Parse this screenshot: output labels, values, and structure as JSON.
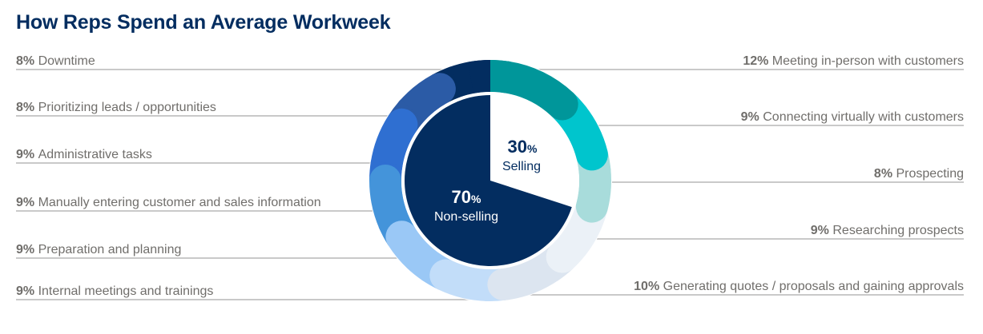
{
  "chart_data": {
    "type": "pie",
    "title": "How Reps Spend an Average Workweek",
    "inner": [
      {
        "value": 30,
        "pct_label": "30",
        "label": "Selling",
        "color": "#ffffff",
        "text_color": "#032d60"
      },
      {
        "value": 70,
        "pct_label": "70",
        "label": "Non-selling",
        "color": "#032d60",
        "text_color": "#ffffff"
      }
    ],
    "percent_sign": "%",
    "ring": [
      {
        "value": 12,
        "label": "Meeting in-person with customers",
        "side": "right",
        "color": "#00969a"
      },
      {
        "value": 9,
        "label": "Connecting virtually with customers",
        "side": "right",
        "color": "#00c5cd"
      },
      {
        "value": 8,
        "label": "Prospecting",
        "side": "right",
        "color": "#a8dcdb"
      },
      {
        "value": 9,
        "label": "Researching prospects",
        "side": "right",
        "color": "#ebf1f7"
      },
      {
        "value": 10,
        "label": "Generating quotes / proposals and gaining approvals",
        "side": "right",
        "color": "#dce5f0"
      },
      {
        "value": 9,
        "label": "Internal meetings and trainings",
        "side": "left",
        "color": "#c2ddf9"
      },
      {
        "value": 9,
        "label": "Preparation and planning",
        "side": "left",
        "color": "#9ac8f6"
      },
      {
        "value": 9,
        "label": "Manually entering customer and sales information",
        "side": "left",
        "color": "#4494da"
      },
      {
        "value": 9,
        "label": "Administrative tasks",
        "side": "left",
        "color": "#2f6fd1"
      },
      {
        "value": 8,
        "label": "Prioritizing leads / opportunities",
        "side": "left",
        "color": "#2b5ba6"
      },
      {
        "value": 8,
        "label": "Downtime",
        "side": "left",
        "color": "#032d60"
      }
    ],
    "legend_placement": "sides",
    "grid": false
  }
}
